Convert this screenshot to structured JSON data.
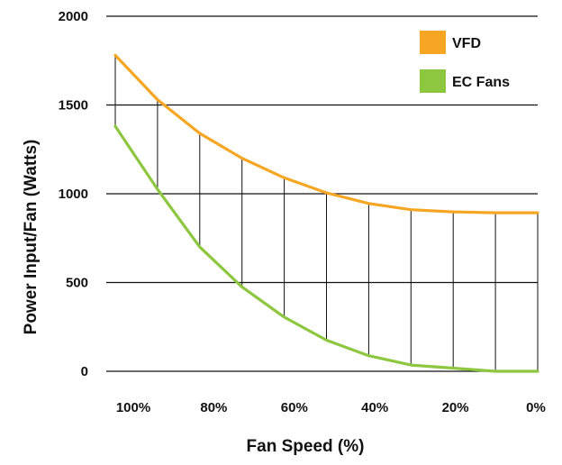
{
  "chart_data": {
    "type": "line",
    "title": "",
    "xlabel": "Fan Speed (%)",
    "ylabel": "Power Input/Fan (Watts)",
    "ylim": [
      0,
      2000
    ],
    "y_ticks": [
      "0",
      "500",
      "1000",
      "1500",
      "2000"
    ],
    "x_tick_labels": [
      "100%",
      "80%",
      "60%",
      "40%",
      "20%",
      "0%"
    ],
    "grid": "horizontal",
    "legend_position": "top-right",
    "fill_between": "vertical hatch lines",
    "series": [
      {
        "name": "VFD",
        "color": "#F6A623",
        "x": [
          100,
          90,
          80,
          70,
          60,
          50,
          40,
          30,
          20,
          10,
          0
        ],
        "values": [
          1780,
          1530,
          1340,
          1200,
          1090,
          1005,
          945,
          910,
          898,
          893,
          893
        ]
      },
      {
        "name": "EC Fans",
        "color": "#8DC63F",
        "x": [
          100,
          90,
          80,
          70,
          60,
          50,
          40,
          30,
          20,
          10,
          0
        ],
        "values": [
          1380,
          1025,
          700,
          475,
          305,
          175,
          88,
          35,
          18,
          0,
          0
        ]
      }
    ]
  }
}
